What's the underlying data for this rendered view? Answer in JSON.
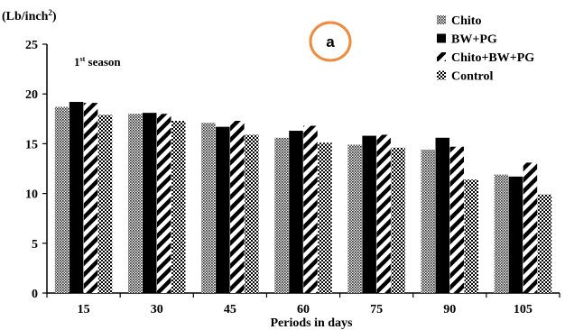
{
  "chart_data": {
    "type": "bar",
    "panel_label": "a",
    "season_label": "1",
    "season_label_sup": "st",
    "season_label_rest": " season",
    "ylabel_main": "(Lb/inch",
    "ylabel_sup": "2",
    "ylabel_end": ")",
    "xlabel": "Periods in days",
    "ylim": [
      0,
      25
    ],
    "yticks": [
      0,
      5,
      10,
      15,
      20,
      25
    ],
    "categories": [
      "15",
      "30",
      "45",
      "60",
      "75",
      "90",
      "105"
    ],
    "grid": false,
    "legend_position": "top-right",
    "series": [
      {
        "name": "Chito",
        "pattern": "dots",
        "values": [
          18.7,
          18.0,
          17.1,
          15.6,
          14.9,
          14.4,
          11.9
        ]
      },
      {
        "name": "BW+PG",
        "pattern": "solid",
        "values": [
          19.2,
          18.1,
          16.7,
          16.3,
          15.8,
          15.6,
          11.7
        ]
      },
      {
        "name": "Chito+BW+PG",
        "pattern": "diagonal",
        "values": [
          19.1,
          18.0,
          17.3,
          16.8,
          15.9,
          14.7,
          13.1
        ]
      },
      {
        "name": "Control",
        "pattern": "checker",
        "values": [
          17.9,
          17.3,
          15.9,
          15.1,
          14.6,
          11.4,
          9.9
        ]
      }
    ],
    "colors": {
      "bar_solid": "#000000",
      "axis": "#000000",
      "panel_circle": "#f08a3c"
    }
  }
}
